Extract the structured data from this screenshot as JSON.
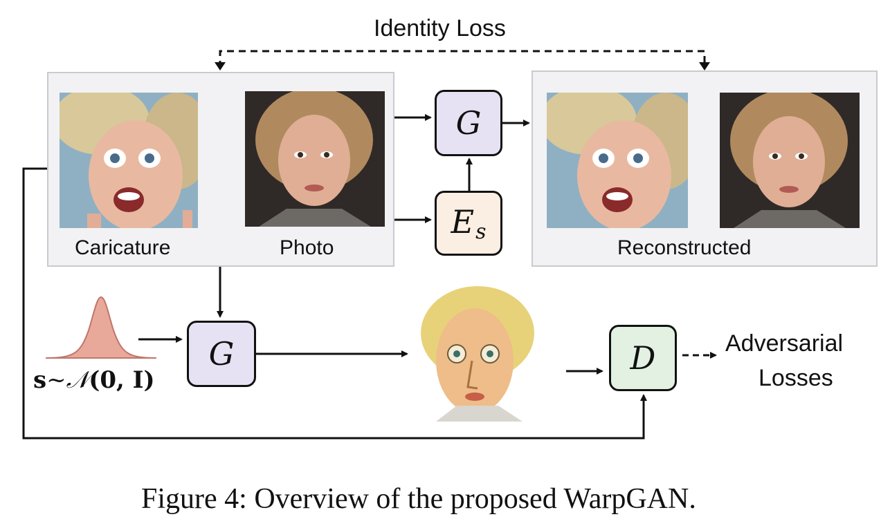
{
  "identity_loss_label": "Identity Loss",
  "input_group": {
    "caricature_label": "Caricature",
    "photo_label": "Photo"
  },
  "output_group": {
    "reconstructed_label": "Reconstructed"
  },
  "nodes": {
    "generator_top": "G",
    "style_encoder_main": "E",
    "style_encoder_sub": "s",
    "generator_bottom": "G",
    "discriminator": "D"
  },
  "noise": {
    "formula_s": "s",
    "formula_tilde": "~",
    "formula_N": "𝒩",
    "formula_args": "(0, I)"
  },
  "adversarial_label_line1": "Adversarial",
  "adversarial_label_line2": "Losses",
  "caption": "Figure 4: Overview of the proposed WarpGAN.",
  "colors": {
    "generator_fill": "#e7e2f3",
    "encoder_fill": "#fbeee2",
    "discriminator_fill": "#e2f1e1",
    "gaussian_fill": "#e8a89a",
    "group_fill": "#f2f2f4"
  }
}
